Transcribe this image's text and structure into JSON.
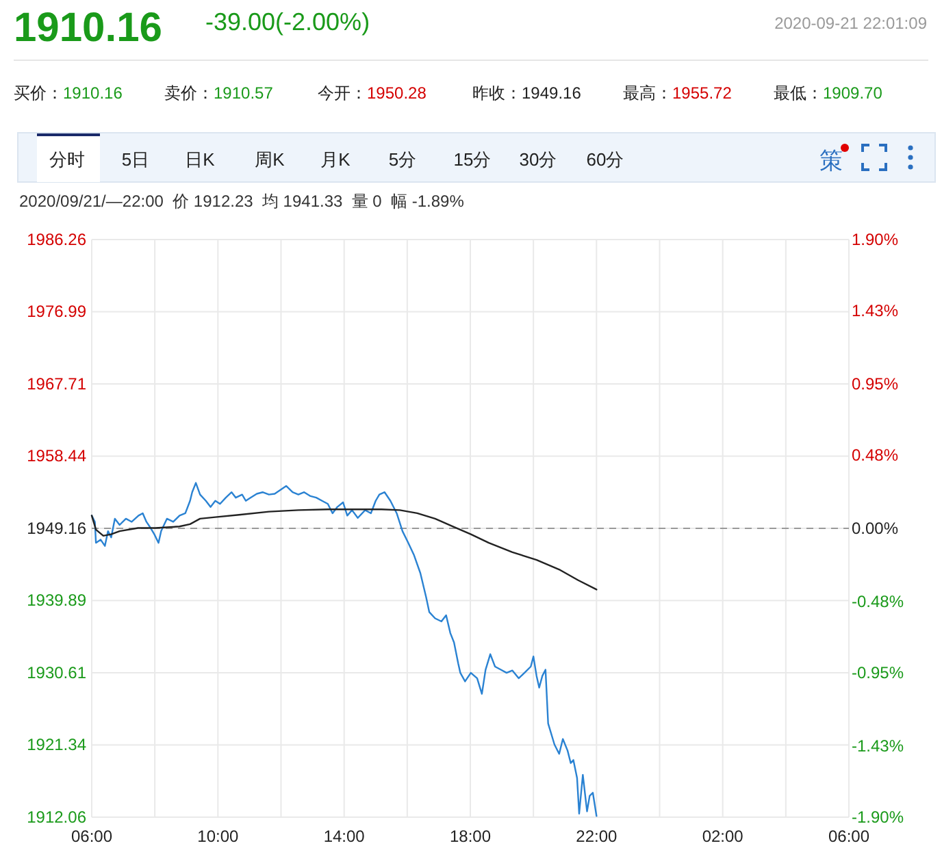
{
  "chart_data": {
    "type": "line",
    "title": "1910.16",
    "subtitle": "-39.00(-2.00%)",
    "annotations": [
      "2020-09-21 22:01:09",
      "买价：1910.16",
      "卖价：1910.57",
      "今开：1950.28",
      "昨收：1949.16",
      "最高：1955.72",
      "最低：1909.70",
      "分时",
      "5日",
      "日K",
      "周K",
      "月K",
      "5分",
      "15分",
      "30分",
      "60分",
      "策",
      "2020/09/21/—22:00  价 1912.23  均 1941.33  量 0  幅 -1.89%"
    ],
    "series": [
      {
        "color": "#2a82d2",
        "x": [
          "2020-09-21T06:00",
          "2020-09-21T06:06",
          "2020-09-21T06:08",
          "2020-09-21T06:17",
          "2020-09-21T06:25",
          "2020-09-21T06:31",
          "2020-09-21T06:37",
          "2020-09-21T06:44",
          "2020-09-21T06:53",
          "2020-09-21T07:05",
          "2020-09-21T07:16",
          "2020-09-21T07:29",
          "2020-09-21T07:37",
          "2020-09-21T07:44",
          "2020-09-21T07:52",
          "2020-09-21T07:59",
          "2020-09-21T08:07",
          "2020-09-21T08:12",
          "2020-09-21T08:23",
          "2020-09-21T08:35",
          "2020-09-21T08:47",
          "2020-09-21T08:58",
          "2020-09-21T09:07",
          "2020-09-21T09:11",
          "2020-09-21T09:18",
          "2020-09-21T09:26",
          "2020-09-21T09:37",
          "2020-09-21T09:46",
          "2020-09-21T09:55",
          "2020-09-21T10:04",
          "2020-09-21T10:15",
          "2020-09-21T10:26",
          "2020-09-21T10:34",
          "2020-09-21T10:46",
          "2020-09-21T10:53",
          "2020-09-21T11:02",
          "2020-09-21T11:14",
          "2020-09-21T11:25",
          "2020-09-21T11:37",
          "2020-09-21T11:48",
          "2020-09-21T11:59",
          "2020-09-21T12:10",
          "2020-09-21T12:22",
          "2020-09-21T12:33",
          "2020-09-21T12:44",
          "2020-09-21T12:56",
          "2020-09-21T13:07",
          "2020-09-21T13:18",
          "2020-09-21T13:29",
          "2020-09-21T13:38",
          "2020-09-21T13:47",
          "2020-09-21T13:58",
          "2020-09-21T14:06",
          "2020-09-21T14:15",
          "2020-09-21T14:26",
          "2020-09-21T14:40",
          "2020-09-21T14:51",
          "2020-09-21T15:00",
          "2020-09-21T15:07",
          "2020-09-21T15:17",
          "2020-09-21T15:28",
          "2020-09-21T15:40",
          "2020-09-21T15:51",
          "2020-09-21T16:02",
          "2020-09-21T16:13",
          "2020-09-21T16:25",
          "2020-09-21T16:36",
          "2020-09-21T16:42",
          "2020-09-21T16:53",
          "2020-09-21T17:05",
          "2020-09-21T17:14",
          "2020-09-21T17:22",
          "2020-09-21T17:29",
          "2020-09-21T17:37",
          "2020-09-21T17:41",
          "2020-09-21T17:50",
          "2020-09-21T18:01",
          "2020-09-21T18:13",
          "2020-09-21T18:22",
          "2020-09-21T18:29",
          "2020-09-21T18:38",
          "2020-09-21T18:47",
          "2020-09-21T18:58",
          "2020-09-21T19:09",
          "2020-09-21T19:20",
          "2020-09-21T19:32",
          "2020-09-21T19:43",
          "2020-09-21T19:55",
          "2020-09-21T20:00",
          "2020-09-21T20:06",
          "2020-09-21T20:11",
          "2020-09-21T20:17",
          "2020-09-21T20:23",
          "2020-09-21T20:28",
          "2020-09-21T20:40",
          "2020-09-21T20:49",
          "2020-09-21T20:56",
          "2020-09-21T21:05",
          "2020-09-21T21:11",
          "2020-09-21T21:16",
          "2020-09-21T21:23",
          "2020-09-21T21:27",
          "2020-09-21T21:34",
          "2020-09-21T21:42",
          "2020-09-21T21:47",
          "2020-09-21T21:53",
          "2020-09-21T22:00"
        ],
        "values": [
          1950.8,
          1950.0,
          1947.3,
          1947.7,
          1946.9,
          1948.8,
          1948.0,
          1950.4,
          1949.6,
          1950.4,
          1950.0,
          1950.8,
          1951.1,
          1950.0,
          1949.2,
          1948.4,
          1947.3,
          1948.8,
          1950.4,
          1950.0,
          1950.8,
          1951.1,
          1952.7,
          1953.8,
          1955.0,
          1953.5,
          1952.7,
          1951.9,
          1952.7,
          1952.3,
          1953.1,
          1953.8,
          1953.1,
          1953.5,
          1952.7,
          1953.1,
          1953.6,
          1953.8,
          1953.5,
          1953.6,
          1954.1,
          1954.6,
          1953.8,
          1953.5,
          1953.8,
          1953.3,
          1953.1,
          1952.7,
          1952.3,
          1951.1,
          1951.9,
          1952.5,
          1950.8,
          1951.5,
          1950.5,
          1951.5,
          1951.1,
          1952.7,
          1953.5,
          1953.8,
          1952.7,
          1951.1,
          1948.8,
          1947.3,
          1945.7,
          1943.4,
          1940.3,
          1938.4,
          1937.6,
          1937.2,
          1938.0,
          1935.7,
          1934.5,
          1931.8,
          1930.6,
          1929.5,
          1930.6,
          1929.9,
          1927.9,
          1931.0,
          1933.0,
          1931.4,
          1931.0,
          1930.6,
          1930.9,
          1929.9,
          1930.6,
          1931.4,
          1932.7,
          1930.2,
          1928.7,
          1930.2,
          1931.0,
          1924.1,
          1921.4,
          1920.2,
          1922.1,
          1920.6,
          1919.0,
          1919.4,
          1917.1,
          1912.5,
          1917.5,
          1912.8,
          1914.8,
          1915.2,
          1912.2
        ]
      },
      {
        "color": "#222222",
        "x": [
          "2020-09-21T06:00",
          "2020-09-21T06:08",
          "2020-09-21T06:22",
          "2020-09-21T06:37",
          "2020-09-21T06:53",
          "2020-09-21T07:28",
          "2020-09-21T08:01",
          "2020-09-21T08:47",
          "2020-09-21T09:07",
          "2020-09-21T09:26",
          "2020-09-21T09:55",
          "2020-09-21T10:40",
          "2020-09-21T11:37",
          "2020-09-21T12:33",
          "2020-09-21T13:29",
          "2020-09-21T14:26",
          "2020-09-21T15:11",
          "2020-09-21T15:46",
          "2020-09-21T16:19",
          "2020-09-21T16:53",
          "2020-09-21T17:27",
          "2020-09-21T18:01",
          "2020-09-21T18:35",
          "2020-09-21T19:20",
          "2020-09-21T20:06",
          "2020-09-21T20:51",
          "2020-09-21T21:25",
          "2020-09-21T22:00"
        ],
        "values": [
          1950.8,
          1949.0,
          1948.2,
          1948.4,
          1948.8,
          1949.2,
          1949.2,
          1949.4,
          1949.7,
          1950.4,
          1950.6,
          1950.9,
          1951.3,
          1951.5,
          1951.6,
          1951.6,
          1951.6,
          1951.5,
          1951.1,
          1950.4,
          1949.4,
          1948.4,
          1947.3,
          1946.1,
          1945.1,
          1943.8,
          1942.5,
          1941.3
        ]
      }
    ],
    "xlim": [
      "2020-09-21T06:00",
      "2020-09-22T06:00"
    ],
    "xticks": [
      {
        "value": "2020-09-21T06:00",
        "label": "06:00"
      },
      {
        "value": "2020-09-21T08:00",
        "label": null
      },
      {
        "value": "2020-09-21T10:00",
        "label": "10:00"
      },
      {
        "value": "2020-09-21T12:00",
        "label": null
      },
      {
        "value": "2020-09-21T14:00",
        "label": "14:00"
      },
      {
        "value": "2020-09-21T16:00",
        "label": null
      },
      {
        "value": "2020-09-21T18:00",
        "label": "18:00"
      },
      {
        "value": "2020-09-21T20:00",
        "label": null
      },
      {
        "value": "2020-09-21T22:00",
        "label": "22:00"
      },
      {
        "value": "2020-09-22T00:00",
        "label": null
      },
      {
        "value": "2020-09-22T02:00",
        "label": "02:00"
      },
      {
        "value": "2020-09-22T04:00",
        "label": null
      },
      {
        "value": "2020-09-22T06:00",
        "label": "06:00"
      }
    ],
    "ylim": [
      1912.06,
      1986.26
    ],
    "yticks": [
      1986.26,
      1976.99,
      1967.71,
      1958.44,
      1949.16,
      1939.89,
      1930.61,
      1921.34,
      1912.06
    ],
    "y2lim": [
      -1.9,
      1.9
    ],
    "y2ticks": [
      {
        "value": 1.9,
        "label": "1.90%"
      },
      {
        "value": 1.43,
        "label": "1.43%"
      },
      {
        "value": 0.95,
        "label": "0.95%"
      },
      {
        "value": 0.48,
        "label": "0.48%"
      },
      {
        "value": 0,
        "label": "0.00%"
      },
      {
        "value": -0.48,
        "label": "-0.48%"
      },
      {
        "value": -0.95,
        "label": "-0.95%"
      },
      {
        "value": -1.43,
        "label": "-1.43%"
      },
      {
        "value": -1.9,
        "label": "-1.90%"
      }
    ],
    "ref_lines": [
      {
        "axis": "y",
        "value": 1949.16,
        "color": "#999999",
        "line_style": "dashed"
      }
    ],
    "grid": true
  }
}
